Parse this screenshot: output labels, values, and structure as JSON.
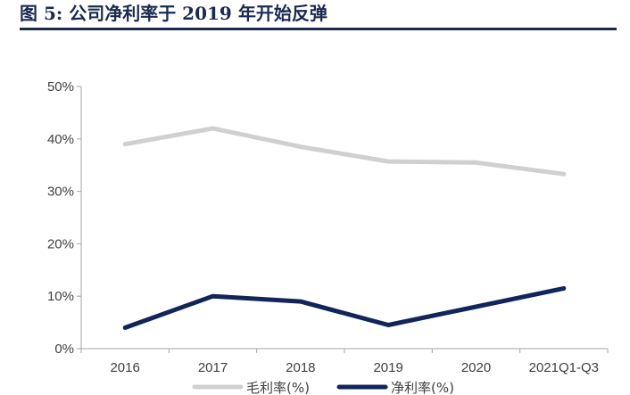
{
  "figure": {
    "title": "图 5:  公司净利率于 2019 年开始反弹"
  },
  "chart_data": {
    "type": "line",
    "categories": [
      "2016",
      "2017",
      "2018",
      "2019",
      "2020",
      "2021Q1-Q3"
    ],
    "series": [
      {
        "name": "毛利率(%)",
        "values": [
          39.0,
          42.0,
          38.5,
          35.7,
          35.5,
          33.3
        ],
        "color": "#d0d0d0"
      },
      {
        "name": "净利率(%)",
        "values": [
          4.0,
          10.0,
          9.0,
          4.5,
          8.0,
          11.5
        ],
        "color": "#12255a"
      }
    ],
    "yticks": [
      "0%",
      "10%",
      "20%",
      "30%",
      "40%",
      "50%"
    ],
    "ylim": [
      0,
      50
    ],
    "grid": false,
    "legend_position": "bottom"
  }
}
